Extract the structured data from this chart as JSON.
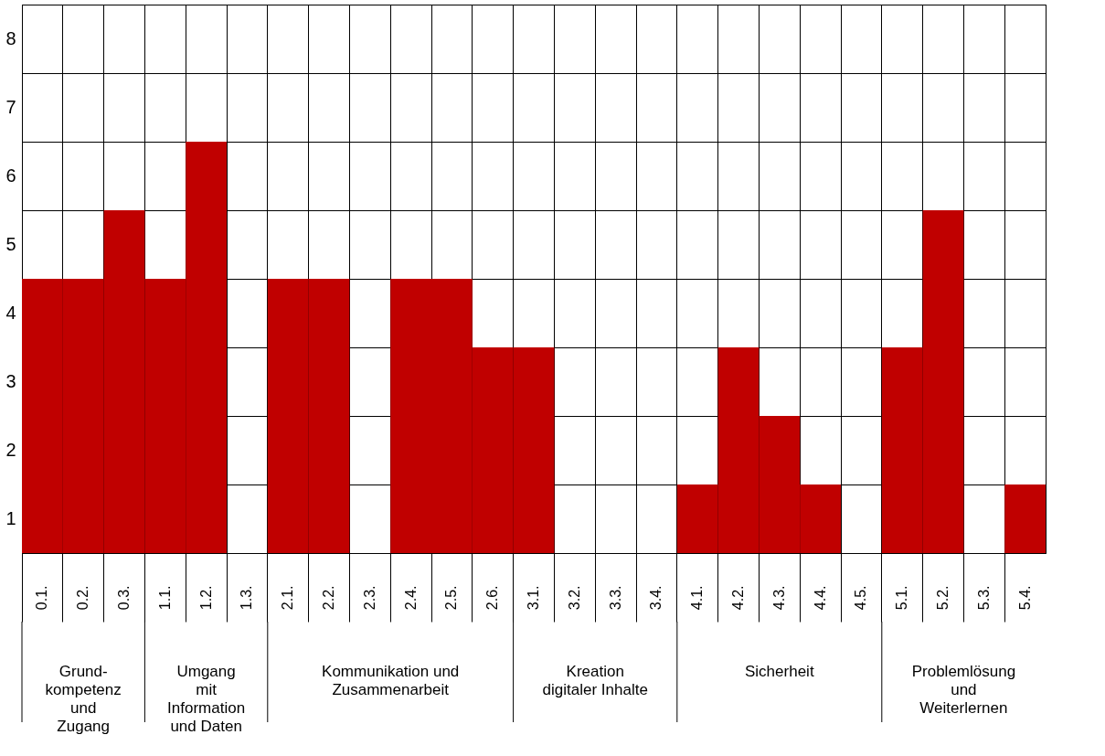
{
  "chart_data": {
    "type": "bar",
    "categories": [
      "0.1.",
      "0.2.",
      "0.3.",
      "1.1.",
      "1.2.",
      "1.3.",
      "2.1.",
      "2.2.",
      "2.3.",
      "2.4.",
      "2.5.",
      "2.6.",
      "3.1.",
      "3.2.",
      "3.3.",
      "3.4.",
      "4.1.",
      "4.2.",
      "4.3.",
      "4.4.",
      "4.5.",
      "5.1.",
      "5.2.",
      "5.3.",
      "5.4."
    ],
    "values": [
      4,
      4,
      5,
      4,
      6,
      0,
      4,
      4,
      0,
      4,
      4,
      3,
      3,
      0,
      0,
      0,
      1,
      3,
      2,
      1,
      0,
      3,
      5,
      0,
      1
    ],
    "color": "#c00000",
    "ylim": [
      0,
      8
    ],
    "yticks": [
      {
        "value": 0,
        "label": null
      },
      {
        "value": 0.5,
        "label": "1"
      },
      {
        "value": 1,
        "label": null
      },
      {
        "value": 1.5,
        "label": "2"
      },
      {
        "value": 2,
        "label": null
      },
      {
        "value": 2.5,
        "label": "3"
      },
      {
        "value": 3,
        "label": null
      },
      {
        "value": 3.5,
        "label": "4"
      },
      {
        "value": 4,
        "label": null
      },
      {
        "value": 4.5,
        "label": "5"
      },
      {
        "value": 5,
        "label": null
      },
      {
        "value": 5.5,
        "label": "6"
      },
      {
        "value": 6,
        "label": null
      },
      {
        "value": 6.5,
        "label": "7"
      },
      {
        "value": 7,
        "label": null
      },
      {
        "value": 7.5,
        "label": "8"
      },
      {
        "value": 8,
        "label": null
      }
    ],
    "grid": true,
    "annotations": [
      "Grund-\nkompetenz\nund\nZugang",
      "Umgang\nmit\nInformation\nund Daten",
      "Kommunikation und\nZusammenarbeit",
      "Kreation\ndigitaler Inhalte",
      "Sicherheit",
      "Problemlösung\nund\nWeiterlernen"
    ]
  }
}
